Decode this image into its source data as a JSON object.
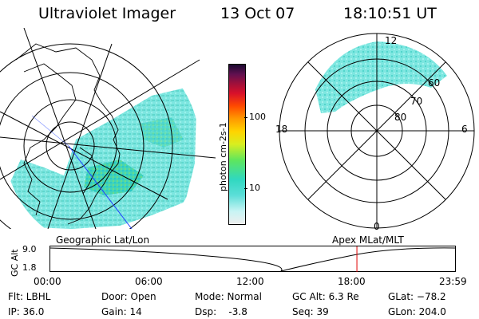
{
  "header": {
    "instrument": "Ultraviolet Imager",
    "date": "13 Oct 07",
    "time": "18:10:51 UT"
  },
  "geo_panel": {
    "label": "Geographic Lat/Lon"
  },
  "mlt_panel": {
    "label": "Apex MLat/MLT",
    "mlt_labels": {
      "top": "12",
      "left": "18",
      "right": "6",
      "bottom": "0"
    },
    "lat_labels": [
      "60",
      "70",
      "80"
    ]
  },
  "colorbar": {
    "unit_label": "photon cm-2s-1",
    "ticks": [
      "100",
      "10"
    ],
    "colors": [
      "#eeeeee",
      "#c8f4f4",
      "#5cded8",
      "#30d8c0",
      "#5ee65e",
      "#d8ee20",
      "#ffd400",
      "#ff9a00",
      "#ff4a00",
      "#d8102a",
      "#a0103a",
      "#601050",
      "#1a0a30"
    ]
  },
  "altitude_plot": {
    "axis_label": "GC Alt",
    "y_ticks": [
      "9.0",
      "1.8"
    ],
    "x_ticks": [
      "00:00",
      "06:00",
      "12:00",
      "18:00",
      "23:59"
    ],
    "current_time_marker_hours": 18.18
  },
  "status": {
    "filter": "Flt: LBHL",
    "ip": "IP: 36.0",
    "door": "Door: Open",
    "gain": "Gain: 14",
    "mode": "Mode: Normal",
    "dsp": "Dsp:    -3.8",
    "gc_alt": "GC Alt: 6.3 Re",
    "seq": "Seq: 39",
    "glat": "GLat: −78.2",
    "glon": "GLon: 204.0"
  }
}
